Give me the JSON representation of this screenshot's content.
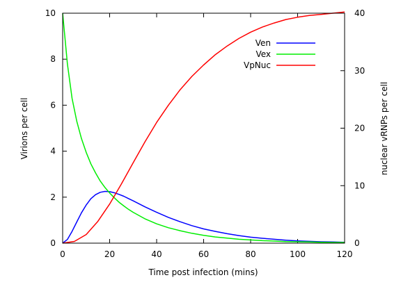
{
  "chart_data": {
    "type": "line",
    "title": "",
    "xlabel": "Time post infection (mins)",
    "ylabel": "Virions per cell",
    "y2label": "nuclear vRNPs per cell",
    "xlim": [
      0,
      120
    ],
    "ylim": [
      0,
      10
    ],
    "y2lim": [
      0,
      40
    ],
    "xticks": [
      0,
      20,
      40,
      60,
      80,
      100,
      120
    ],
    "yticks": [
      0,
      2,
      4,
      6,
      8,
      10
    ],
    "y2ticks": [
      0,
      10,
      20,
      30,
      40
    ],
    "grid": false,
    "legend_position": "top-right",
    "series": [
      {
        "name": "Ven",
        "axis": "left",
        "color": "#0000ff",
        "x": [
          0,
          2,
          4,
          6,
          8,
          10,
          12,
          14,
          16,
          18,
          20,
          22,
          24,
          26,
          28,
          30,
          35,
          40,
          45,
          50,
          55,
          60,
          65,
          70,
          75,
          80,
          85,
          90,
          95,
          100,
          105,
          110,
          115,
          120
        ],
        "y": [
          0,
          0.16,
          0.51,
          0.92,
          1.32,
          1.66,
          1.93,
          2.11,
          2.21,
          2.25,
          2.24,
          2.19,
          2.12,
          2.04,
          1.94,
          1.84,
          1.58,
          1.34,
          1.12,
          0.93,
          0.76,
          0.62,
          0.51,
          0.41,
          0.33,
          0.26,
          0.21,
          0.17,
          0.13,
          0.1,
          0.08,
          0.06,
          0.05,
          0.04
        ]
      },
      {
        "name": "Vex",
        "axis": "left",
        "color": "#00ee00",
        "x": [
          0,
          2,
          4,
          6,
          8,
          10,
          12,
          14,
          16,
          18,
          20,
          22,
          24,
          26,
          28,
          30,
          35,
          40,
          45,
          50,
          55,
          60,
          65,
          70,
          75,
          80,
          85,
          90,
          95,
          100,
          105,
          110,
          115,
          120
        ],
        "y": [
          10,
          7.8,
          6.3,
          5.3,
          4.55,
          3.95,
          3.45,
          3.05,
          2.7,
          2.42,
          2.18,
          1.97,
          1.78,
          1.62,
          1.47,
          1.34,
          1.06,
          0.84,
          0.67,
          0.54,
          0.43,
          0.34,
          0.27,
          0.22,
          0.17,
          0.14,
          0.11,
          0.09,
          0.07,
          0.06,
          0.05,
          0.04,
          0.03,
          0.03
        ]
      },
      {
        "name": "VpNuc",
        "axis": "right",
        "color": "#ff0000",
        "x": [
          0,
          5,
          10,
          15,
          20,
          25,
          30,
          35,
          40,
          45,
          50,
          55,
          60,
          65,
          70,
          75,
          80,
          85,
          90,
          95,
          100,
          105,
          110,
          115,
          120
        ],
        "y": [
          0,
          0.3,
          1.5,
          3.8,
          6.8,
          10.3,
          14,
          17.6,
          21,
          24,
          26.7,
          29,
          31,
          32.8,
          34.3,
          35.6,
          36.7,
          37.6,
          38.3,
          38.9,
          39.3,
          39.6,
          39.8,
          40,
          40.2
        ]
      }
    ]
  }
}
